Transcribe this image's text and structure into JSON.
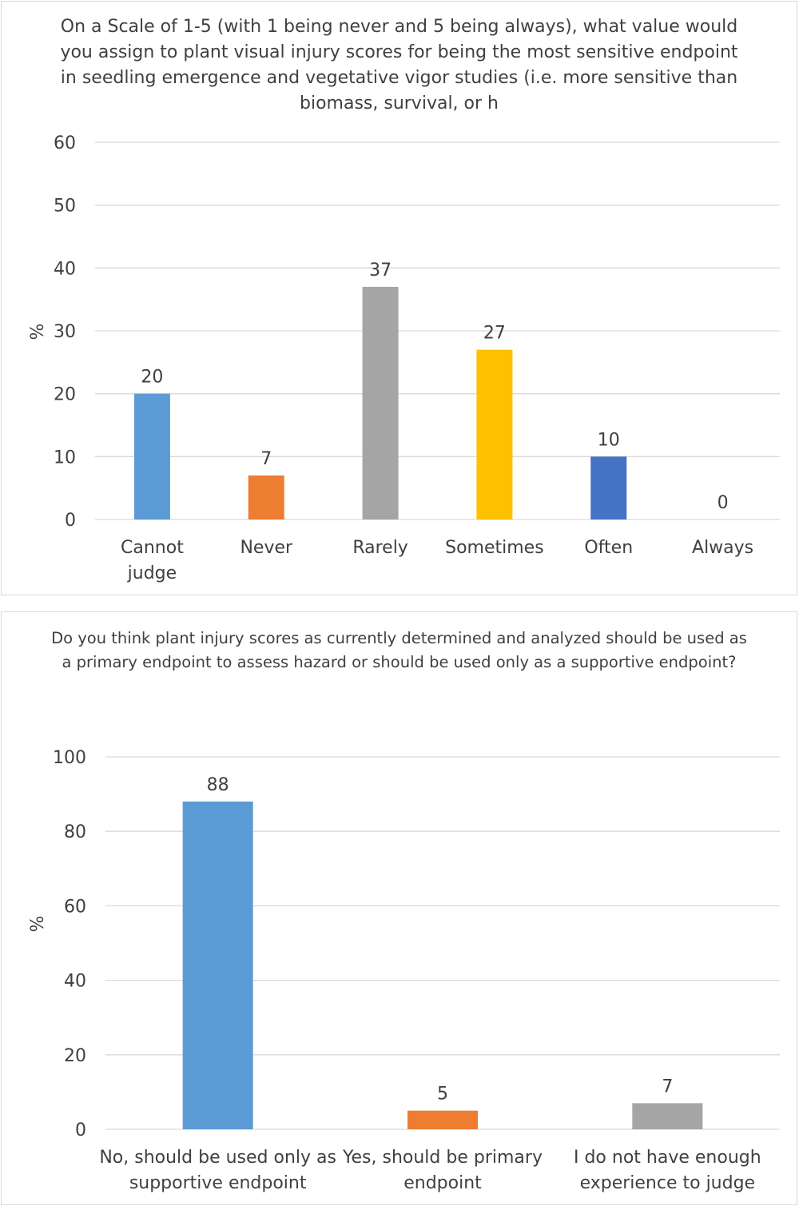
{
  "chart_data": [
    {
      "type": "bar",
      "title": "On a Scale of 1-5 (with 1 being never and 5 being always), what value would you assign to plant visual injury scores for being the most sensitive endpoint in seedling emergence and vegetative vigor studies (i.e. more sensitive than biomass, survival, or h",
      "categories": [
        "Cannot judge",
        "Never",
        "Rarely",
        "Sometimes",
        "Often",
        "Always"
      ],
      "values": [
        20,
        7,
        37,
        27,
        10,
        0
      ],
      "colors": [
        "#5b9bd5",
        "#ed7d31",
        "#a5a5a5",
        "#ffc000",
        "#4472c4",
        "#70ad47"
      ],
      "xlabel": "",
      "ylabel": "%",
      "ylim": [
        0,
        60
      ],
      "yticks": [
        0,
        10,
        20,
        30,
        40,
        50,
        60
      ],
      "grid": true,
      "legend": "none"
    },
    {
      "type": "bar",
      "title": "Do you think plant injury scores as currently determined and analyzed should be used as a primary endpoint to assess hazard or should be used only as a supportive endpoint?",
      "categories": [
        "No, should be used only as supportive endpoint",
        "Yes, should be primary endpoint",
        "I do not have enough experience to judge"
      ],
      "values": [
        88,
        5,
        7
      ],
      "colors": [
        "#5b9bd5",
        "#ed7d31",
        "#a5a5a5"
      ],
      "xlabel": "",
      "ylabel": "%",
      "ylim": [
        0,
        100
      ],
      "yticks": [
        0,
        20,
        40,
        60,
        80,
        100
      ],
      "grid": true,
      "legend": "none"
    }
  ]
}
